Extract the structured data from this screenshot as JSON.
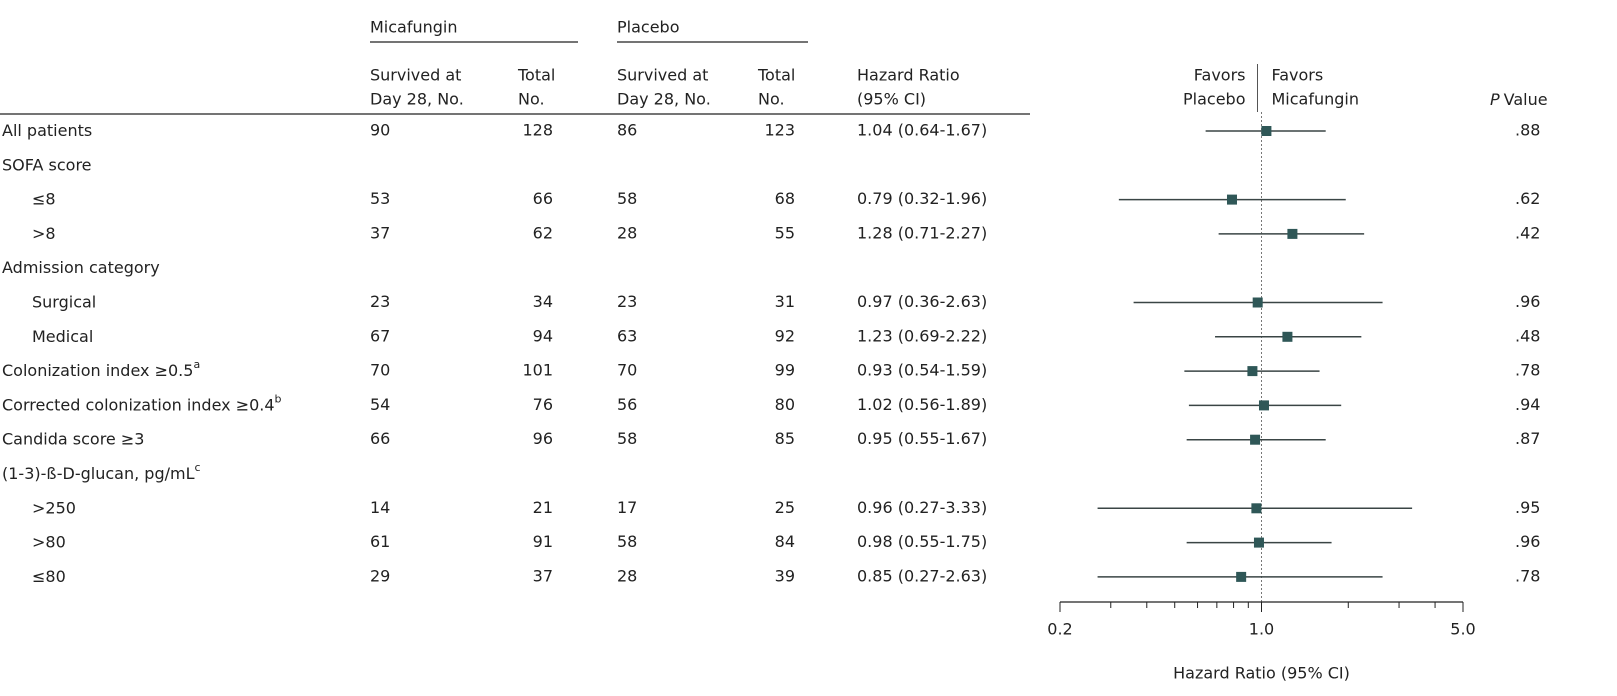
{
  "chart_data": {
    "type": "forest",
    "groups": [
      {
        "name": "Micafungin"
      },
      {
        "name": "Placebo"
      }
    ],
    "columns": {
      "survived": [
        "Survived at",
        "Day 28, No."
      ],
      "total": [
        "Total",
        "No."
      ],
      "hr": [
        "Hazard Ratio",
        "(95% CI)"
      ],
      "p_italic": "P",
      "p_rest": "Value"
    },
    "favors_left": [
      "Favors",
      "Placebo"
    ],
    "favors_right": [
      "Favors",
      "Micafungin"
    ],
    "xlabel": "Hazard Ratio (95% CI)",
    "xscale": "log",
    "xlim": [
      0.2,
      5.0
    ],
    "xticks": [
      {
        "value": 0.2,
        "label": "0.2"
      },
      {
        "value": 1.0,
        "label": "1.0"
      },
      {
        "value": 5.0,
        "label": "5.0"
      }
    ],
    "minor_xticks": [
      0.3,
      0.4,
      0.5,
      0.6,
      0.7,
      0.8,
      0.9,
      2,
      3,
      4
    ],
    "reference": 1.0,
    "marker_color": "#2f5757",
    "line_color": "#3a4545",
    "rows": [
      {
        "label": "All patients",
        "indent": false,
        "mica_survived": "90",
        "mica_total": "128",
        "placebo_survived": "86",
        "placebo_total": "123",
        "hr_text": "1.04 (0.64-1.67)",
        "hr": 1.04,
        "ci_low": 0.64,
        "ci_high": 1.67,
        "p": ".88"
      },
      {
        "label": "SOFA score",
        "indent": false
      },
      {
        "label": "≤8",
        "indent": true,
        "mica_survived": "53",
        "mica_total": "66",
        "placebo_survived": "58",
        "placebo_total": "68",
        "hr_text": "0.79 (0.32-1.96)",
        "hr": 0.79,
        "ci_low": 0.32,
        "ci_high": 1.96,
        "p": ".62"
      },
      {
        "label": ">8",
        "indent": true,
        "mica_survived": "37",
        "mica_total": "62",
        "placebo_survived": "28",
        "placebo_total": "55",
        "hr_text": "1.28 (0.71-2.27)",
        "hr": 1.28,
        "ci_low": 0.71,
        "ci_high": 2.27,
        "p": ".42"
      },
      {
        "label": "Admission category",
        "indent": false
      },
      {
        "label": "Surgical",
        "indent": true,
        "mica_survived": "23",
        "mica_total": "34",
        "placebo_survived": "23",
        "placebo_total": "31",
        "hr_text": "0.97 (0.36-2.63)",
        "hr": 0.97,
        "ci_low": 0.36,
        "ci_high": 2.63,
        "p": ".96"
      },
      {
        "label": "Medical",
        "indent": true,
        "mica_survived": "67",
        "mica_total": "94",
        "placebo_survived": "63",
        "placebo_total": "92",
        "hr_text": "1.23 (0.69-2.22)",
        "hr": 1.23,
        "ci_low": 0.69,
        "ci_high": 2.22,
        "p": ".48"
      },
      {
        "label": "Colonization index ≥0.5",
        "note": "a",
        "indent": false,
        "mica_survived": "70",
        "mica_total": "101",
        "placebo_survived": "70",
        "placebo_total": "99",
        "hr_text": "0.93 (0.54-1.59)",
        "hr": 0.93,
        "ci_low": 0.54,
        "ci_high": 1.59,
        "p": ".78"
      },
      {
        "label": "Corrected colonization index ≥0.4",
        "note": "b",
        "indent": false,
        "mica_survived": "54",
        "mica_total": "76",
        "placebo_survived": "56",
        "placebo_total": "80",
        "hr_text": "1.02 (0.56-1.89)",
        "hr": 1.02,
        "ci_low": 0.56,
        "ci_high": 1.89,
        "p": ".94"
      },
      {
        "label": "Candida score ≥3",
        "indent": false,
        "mica_survived": "66",
        "mica_total": "96",
        "placebo_survived": "58",
        "placebo_total": "85",
        "hr_text": "0.95 (0.55-1.67)",
        "hr": 0.95,
        "ci_low": 0.55,
        "ci_high": 1.67,
        "p": ".87"
      },
      {
        "label": "(1-3)-ß-D-glucan, pg/mL",
        "note": "c",
        "indent": false
      },
      {
        "label": ">250",
        "indent": true,
        "mica_survived": "14",
        "mica_total": "21",
        "placebo_survived": "17",
        "placebo_total": "25",
        "hr_text": "0.96 (0.27-3.33)",
        "hr": 0.96,
        "ci_low": 0.27,
        "ci_high": 3.33,
        "p": ".95"
      },
      {
        "label": ">80",
        "indent": true,
        "mica_survived": "61",
        "mica_total": "91",
        "placebo_survived": "58",
        "placebo_total": "84",
        "hr_text": "0.98 (0.55-1.75)",
        "hr": 0.98,
        "ci_low": 0.55,
        "ci_high": 1.75,
        "p": ".96"
      },
      {
        "label": "≤80",
        "indent": true,
        "mica_survived": "29",
        "mica_total": "37",
        "placebo_survived": "28",
        "placebo_total": "39",
        "hr_text": "0.85 (0.27-2.63)",
        "hr": 0.85,
        "ci_low": 0.27,
        "ci_high": 2.63,
        "p": ".78"
      }
    ]
  }
}
